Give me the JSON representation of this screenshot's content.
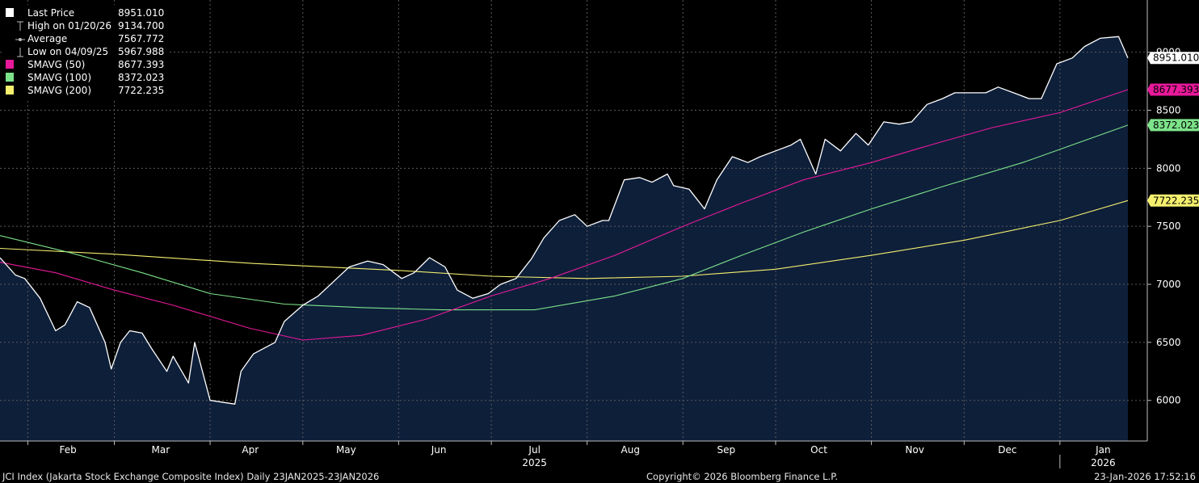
{
  "legend": {
    "items": [
      {
        "label": "Last Price",
        "value": "8951.010",
        "color": "#ffffff",
        "symbol": "square"
      },
      {
        "label": "High on 01/20/26",
        "value": "9134.700",
        "color": "#bbbbbb",
        "symbol": "high-marker"
      },
      {
        "label": "Average",
        "value": "7567.772",
        "color": "#bbbbbb",
        "symbol": "average-marker"
      },
      {
        "label": "Low on 04/09/25",
        "value": "5967.988",
        "color": "#bbbbbb",
        "symbol": "low-marker"
      },
      {
        "label": "SMAVG (50)",
        "value": "8677.393",
        "color": "#e8199a",
        "symbol": "square"
      },
      {
        "label": "SMAVG (100)",
        "value": "8372.023",
        "color": "#7de38a",
        "symbol": "square"
      },
      {
        "label": "SMAVG (200)",
        "value": "7722.235",
        "color": "#f5f06e",
        "symbol": "square"
      }
    ]
  },
  "footer": {
    "left": "JCI Index (Jakarta Stock Exchange Composite Index) Daily 23JAN2025-23JAN2026",
    "center": "Copyright© 2026 Bloomberg Finance L.P.",
    "right": "23-Jan-2026 17:52:16"
  },
  "colors": {
    "background": "#000000",
    "area_fill": "#0e1f3a",
    "price_line": "#ffffff",
    "grid": "#5a5a5a"
  },
  "chart_data": {
    "type": "area",
    "xlim": [
      "2025-01-23",
      "2026-01-23"
    ],
    "ylim": [
      5650,
      9450
    ],
    "grid": true,
    "y_ticks": [
      6000,
      6500,
      7000,
      7500,
      8000,
      8500,
      9000
    ],
    "x_month_labels": [
      {
        "label": "Feb",
        "date": "2025-02-14"
      },
      {
        "label": "Mar",
        "date": "2025-03-16"
      },
      {
        "label": "Apr",
        "date": "2025-04-14"
      },
      {
        "label": "May",
        "date": "2025-05-15"
      },
      {
        "label": "Jun",
        "date": "2025-06-14"
      },
      {
        "label": "Jul",
        "date": "2025-07-15"
      },
      {
        "label": "Aug",
        "date": "2025-08-15"
      },
      {
        "label": "Sep",
        "date": "2025-09-15"
      },
      {
        "label": "Oct",
        "date": "2025-10-15"
      },
      {
        "label": "Nov",
        "date": "2025-11-15"
      },
      {
        "label": "Dec",
        "date": "2025-12-15"
      },
      {
        "label": "Jan",
        "date": "2026-01-15"
      }
    ],
    "x_month_boundaries": [
      "2025-02-01",
      "2025-03-01",
      "2025-04-01",
      "2025-05-01",
      "2025-06-01",
      "2025-07-01",
      "2025-08-01",
      "2025-09-01",
      "2025-10-01",
      "2025-11-01",
      "2025-12-01",
      "2026-01-01"
    ],
    "x_year_labels": [
      {
        "label": "2025",
        "date": "2025-07-15"
      },
      {
        "label": "2026",
        "date": "2026-01-15"
      }
    ],
    "series": [
      {
        "name": "Last Price",
        "color": "#ffffff",
        "end_label": "8951.010",
        "points": [
          [
            "2025-01-23",
            7230
          ],
          [
            "2025-01-28",
            7080
          ],
          [
            "2025-01-31",
            7050
          ],
          [
            "2025-02-05",
            6880
          ],
          [
            "2025-02-10",
            6600
          ],
          [
            "2025-02-13",
            6650
          ],
          [
            "2025-02-17",
            6850
          ],
          [
            "2025-02-21",
            6800
          ],
          [
            "2025-02-26",
            6500
          ],
          [
            "2025-02-28",
            6270
          ],
          [
            "2025-03-03",
            6500
          ],
          [
            "2025-03-06",
            6600
          ],
          [
            "2025-03-10",
            6580
          ],
          [
            "2025-03-13",
            6450
          ],
          [
            "2025-03-18",
            6250
          ],
          [
            "2025-03-20",
            6380
          ],
          [
            "2025-03-25",
            6150
          ],
          [
            "2025-03-27",
            6500
          ],
          [
            "2025-04-01",
            6000
          ],
          [
            "2025-04-09",
            5968
          ],
          [
            "2025-04-11",
            6250
          ],
          [
            "2025-04-15",
            6400
          ],
          [
            "2025-04-22",
            6500
          ],
          [
            "2025-04-25",
            6680
          ],
          [
            "2025-05-01",
            6820
          ],
          [
            "2025-05-06",
            6900
          ],
          [
            "2025-05-12",
            7050
          ],
          [
            "2025-05-16",
            7150
          ],
          [
            "2025-05-22",
            7200
          ],
          [
            "2025-05-27",
            7170
          ],
          [
            "2025-06-02",
            7050
          ],
          [
            "2025-06-06",
            7100
          ],
          [
            "2025-06-11",
            7230
          ],
          [
            "2025-06-16",
            7150
          ],
          [
            "2025-06-20",
            6950
          ],
          [
            "2025-06-25",
            6880
          ],
          [
            "2025-06-30",
            6920
          ],
          [
            "2025-07-04",
            7000
          ],
          [
            "2025-07-09",
            7050
          ],
          [
            "2025-07-14",
            7220
          ],
          [
            "2025-07-18",
            7400
          ],
          [
            "2025-07-23",
            7550
          ],
          [
            "2025-07-28",
            7600
          ],
          [
            "2025-08-01",
            7500
          ],
          [
            "2025-08-06",
            7550
          ],
          [
            "2025-08-08",
            7550
          ],
          [
            "2025-08-13",
            7900
          ],
          [
            "2025-08-18",
            7920
          ],
          [
            "2025-08-22",
            7880
          ],
          [
            "2025-08-27",
            7950
          ],
          [
            "2025-08-29",
            7850
          ],
          [
            "2025-09-03",
            7820
          ],
          [
            "2025-09-08",
            7650
          ],
          [
            "2025-09-12",
            7900
          ],
          [
            "2025-09-17",
            8100
          ],
          [
            "2025-09-22",
            8050
          ],
          [
            "2025-09-26",
            8100
          ],
          [
            "2025-10-01",
            8150
          ],
          [
            "2025-10-06",
            8200
          ],
          [
            "2025-10-09",
            8250
          ],
          [
            "2025-10-14",
            7950
          ],
          [
            "2025-10-17",
            8250
          ],
          [
            "2025-10-22",
            8150
          ],
          [
            "2025-10-27",
            8300
          ],
          [
            "2025-10-31",
            8200
          ],
          [
            "2025-11-05",
            8400
          ],
          [
            "2025-11-10",
            8380
          ],
          [
            "2025-11-14",
            8400
          ],
          [
            "2025-11-19",
            8550
          ],
          [
            "2025-11-24",
            8600
          ],
          [
            "2025-11-28",
            8650
          ],
          [
            "2025-12-03",
            8650
          ],
          [
            "2025-12-08",
            8650
          ],
          [
            "2025-12-12",
            8700
          ],
          [
            "2025-12-17",
            8650
          ],
          [
            "2025-12-22",
            8600
          ],
          [
            "2025-12-26",
            8600
          ],
          [
            "2025-12-31",
            8900
          ],
          [
            "2026-01-05",
            8950
          ],
          [
            "2026-01-09",
            9050
          ],
          [
            "2026-01-14",
            9120
          ],
          [
            "2026-01-20",
            9134.7
          ],
          [
            "2026-01-23",
            8951.01
          ]
        ]
      },
      {
        "name": "SMAVG (50)",
        "color": "#e8199a",
        "end_label": "8677.393",
        "points": [
          [
            "2025-01-23",
            7190
          ],
          [
            "2025-02-10",
            7100
          ],
          [
            "2025-03-01",
            6950
          ],
          [
            "2025-03-20",
            6820
          ],
          [
            "2025-04-14",
            6620
          ],
          [
            "2025-05-01",
            6520
          ],
          [
            "2025-05-20",
            6560
          ],
          [
            "2025-06-10",
            6700
          ],
          [
            "2025-07-01",
            6900
          ],
          [
            "2025-07-20",
            7050
          ],
          [
            "2025-08-10",
            7250
          ],
          [
            "2025-09-01",
            7500
          ],
          [
            "2025-09-20",
            7700
          ],
          [
            "2025-10-10",
            7900
          ],
          [
            "2025-11-01",
            8050
          ],
          [
            "2025-11-20",
            8200
          ],
          [
            "2025-12-10",
            8350
          ],
          [
            "2026-01-01",
            8480
          ],
          [
            "2026-01-23",
            8677.393
          ]
        ]
      },
      {
        "name": "SMAVG (100)",
        "color": "#7de38a",
        "end_label": "8372.023",
        "points": [
          [
            "2025-01-23",
            7420
          ],
          [
            "2025-02-15",
            7270
          ],
          [
            "2025-03-10",
            7100
          ],
          [
            "2025-04-01",
            6920
          ],
          [
            "2025-04-25",
            6830
          ],
          [
            "2025-05-20",
            6800
          ],
          [
            "2025-06-15",
            6780
          ],
          [
            "2025-07-15",
            6780
          ],
          [
            "2025-08-10",
            6900
          ],
          [
            "2025-09-01",
            7050
          ],
          [
            "2025-09-20",
            7250
          ],
          [
            "2025-10-10",
            7450
          ],
          [
            "2025-11-01",
            7650
          ],
          [
            "2025-11-25",
            7850
          ],
          [
            "2025-12-20",
            8050
          ],
          [
            "2026-01-23",
            8372.023
          ]
        ]
      },
      {
        "name": "SMAVG (200)",
        "color": "#f5f06e",
        "end_label": "7722.235",
        "points": [
          [
            "2025-01-23",
            7310
          ],
          [
            "2025-03-01",
            7260
          ],
          [
            "2025-04-15",
            7180
          ],
          [
            "2025-06-01",
            7120
          ],
          [
            "2025-07-01",
            7070
          ],
          [
            "2025-08-01",
            7050
          ],
          [
            "2025-09-01",
            7070
          ],
          [
            "2025-10-01",
            7130
          ],
          [
            "2025-11-01",
            7250
          ],
          [
            "2025-12-01",
            7380
          ],
          [
            "2026-01-01",
            7550
          ],
          [
            "2026-01-23",
            7722.235
          ]
        ]
      }
    ]
  }
}
